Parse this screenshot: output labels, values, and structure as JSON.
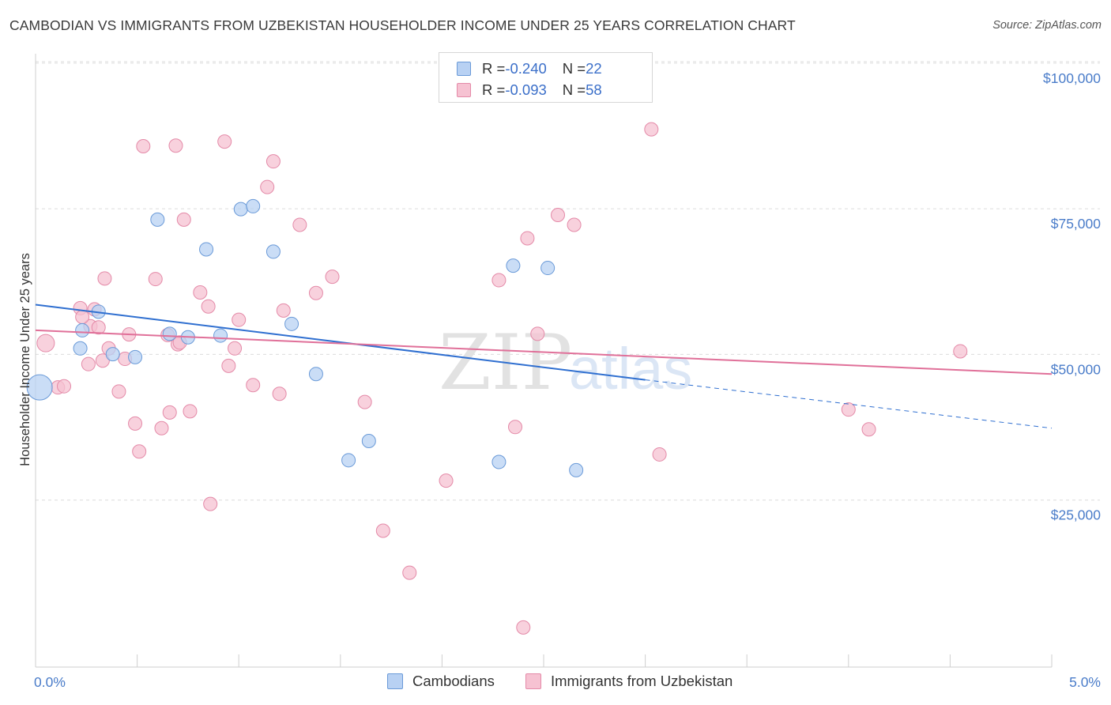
{
  "header": {
    "title": "CAMBODIAN VS IMMIGRANTS FROM UZBEKISTAN HOUSEHOLDER INCOME UNDER 25 YEARS CORRELATION CHART",
    "source": "Source: ZipAtlas.com"
  },
  "watermark": {
    "zip": "ZIP",
    "atlas": "atlas"
  },
  "legend": {
    "rows": [
      {
        "r_label": "R = ",
        "r_value": "-0.240",
        "n_label": "N = ",
        "n_value": "22"
      },
      {
        "r_label": "R = ",
        "r_value": "-0.093",
        "n_label": "N = ",
        "n_value": "58"
      }
    ]
  },
  "colors": {
    "blue_fill": "#b8d1f3",
    "blue_stroke": "#6a9ad8",
    "blue_line": "#2f6fd0",
    "pink_fill": "#f6c2d2",
    "pink_stroke": "#e48aa8",
    "pink_line": "#e07099",
    "grid": "#dcdcdc",
    "tick_text": "#4a7cc9"
  },
  "chart_data": {
    "type": "scatter",
    "title": "CAMBODIAN VS IMMIGRANTS FROM UZBEKISTAN HOUSEHOLDER INCOME UNDER 25 YEARS CORRELATION CHART",
    "xlabel": "",
    "ylabel": "Householder Income Under 25 years",
    "xlim": [
      0,
      5
    ],
    "ylim": [
      0,
      105000
    ],
    "x_tick_labels": [
      "0.0%",
      "5.0%"
    ],
    "y_ticks": [
      25000,
      50000,
      75000,
      100000
    ],
    "y_tick_labels": [
      "$25,000",
      "$50,000",
      "$75,000",
      "$100,000"
    ],
    "grid": true,
    "legend_placement": "top-center",
    "series": [
      {
        "name": "Cambodians",
        "color": "#b8d1f3",
        "r": -0.24,
        "n": 22,
        "points": [
          [
            0.02,
            48000
          ],
          [
            0.23,
            57800
          ],
          [
            0.22,
            54700
          ],
          [
            0.31,
            61000
          ],
          [
            0.38,
            53700
          ],
          [
            0.49,
            53200
          ],
          [
            0.6,
            76800
          ],
          [
            0.66,
            57200
          ],
          [
            0.75,
            56600
          ],
          [
            0.84,
            71700
          ],
          [
            0.91,
            56900
          ],
          [
            1.01,
            78600
          ],
          [
            1.07,
            79100
          ],
          [
            1.17,
            71300
          ],
          [
            1.26,
            58900
          ],
          [
            1.38,
            50300
          ],
          [
            1.54,
            35500
          ],
          [
            1.64,
            38800
          ],
          [
            2.28,
            35200
          ],
          [
            2.35,
            68900
          ],
          [
            2.52,
            68500
          ],
          [
            2.66,
            33800
          ]
        ],
        "trend": {
          "x": [
            0,
            3.0
          ],
          "y": [
            62200,
            49300
          ],
          "dashed_to": [
            5.0,
            41000
          ]
        }
      },
      {
        "name": "Immigrants from Uzbekistan",
        "color": "#f6c2d2",
        "r": -0.093,
        "n": 58,
        "points": [
          [
            0.05,
            55600
          ],
          [
            0.11,
            48000
          ],
          [
            0.14,
            48200
          ],
          [
            0.22,
            61600
          ],
          [
            0.27,
            58500
          ],
          [
            0.23,
            60100
          ],
          [
            0.29,
            61400
          ],
          [
            0.26,
            52000
          ],
          [
            0.31,
            58300
          ],
          [
            0.33,
            52600
          ],
          [
            0.34,
            66700
          ],
          [
            0.36,
            54700
          ],
          [
            0.41,
            47300
          ],
          [
            0.44,
            52900
          ],
          [
            0.46,
            57100
          ],
          [
            0.49,
            41800
          ],
          [
            0.51,
            37000
          ],
          [
            0.53,
            89400
          ],
          [
            0.59,
            66600
          ],
          [
            0.62,
            41000
          ],
          [
            0.65,
            57000
          ],
          [
            0.66,
            43700
          ],
          [
            0.69,
            89500
          ],
          [
            0.7,
            55400
          ],
          [
            0.71,
            55700
          ],
          [
            0.76,
            43900
          ],
          [
            0.73,
            76800
          ],
          [
            0.81,
            64300
          ],
          [
            0.85,
            61900
          ],
          [
            0.86,
            28000
          ],
          [
            0.93,
            90200
          ],
          [
            0.95,
            51700
          ],
          [
            0.98,
            54700
          ],
          [
            1.0,
            59600
          ],
          [
            1.07,
            48400
          ],
          [
            1.14,
            82400
          ],
          [
            1.17,
            86800
          ],
          [
            1.2,
            46900
          ],
          [
            1.22,
            61200
          ],
          [
            1.3,
            75900
          ],
          [
            1.38,
            64200
          ],
          [
            1.46,
            67000
          ],
          [
            1.62,
            45500
          ],
          [
            1.71,
            23400
          ],
          [
            1.84,
            16200
          ],
          [
            2.02,
            32000
          ],
          [
            2.28,
            66400
          ],
          [
            2.36,
            41200
          ],
          [
            2.4,
            6800
          ],
          [
            2.42,
            73600
          ],
          [
            2.47,
            57200
          ],
          [
            2.57,
            77600
          ],
          [
            2.65,
            75900
          ],
          [
            3.03,
            92300
          ],
          [
            3.07,
            36500
          ],
          [
            4.0,
            44200
          ],
          [
            4.1,
            40800
          ],
          [
            4.55,
            54200
          ]
        ],
        "trend": {
          "x": [
            0,
            5.0
          ],
          "y": [
            57800,
            50300
          ]
        }
      }
    ]
  }
}
